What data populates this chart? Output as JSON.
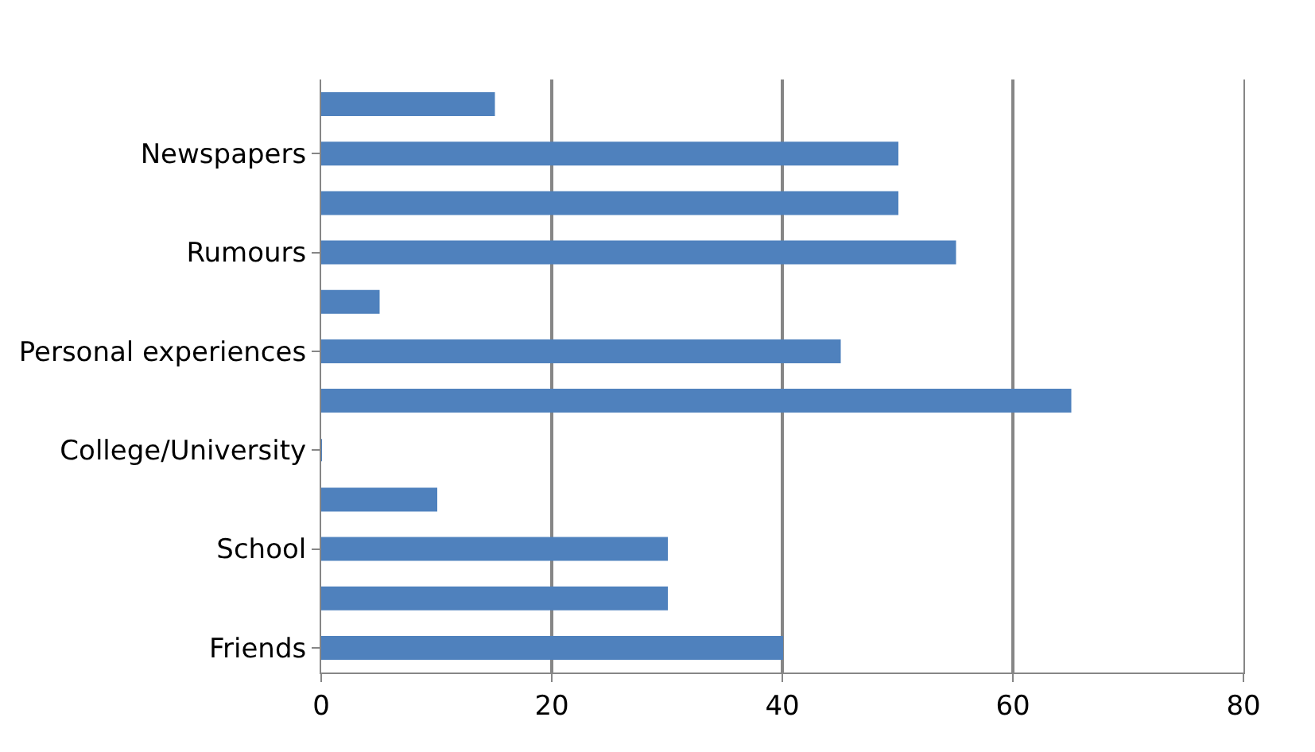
{
  "chart_data": {
    "type": "bar",
    "orientation": "horizontal",
    "categories": [
      null,
      "Newspapers",
      null,
      "Rumours",
      null,
      "Personal experiences",
      null,
      "College/University",
      null,
      "School",
      null,
      "Friends"
    ],
    "values": [
      15,
      50,
      50,
      55,
      5,
      45,
      65,
      0,
      10,
      30,
      30,
      40
    ],
    "color": "#4f81bd",
    "xlim": [
      0,
      80
    ],
    "xticks": [
      0,
      20,
      40,
      60,
      80
    ],
    "grid": "x"
  }
}
